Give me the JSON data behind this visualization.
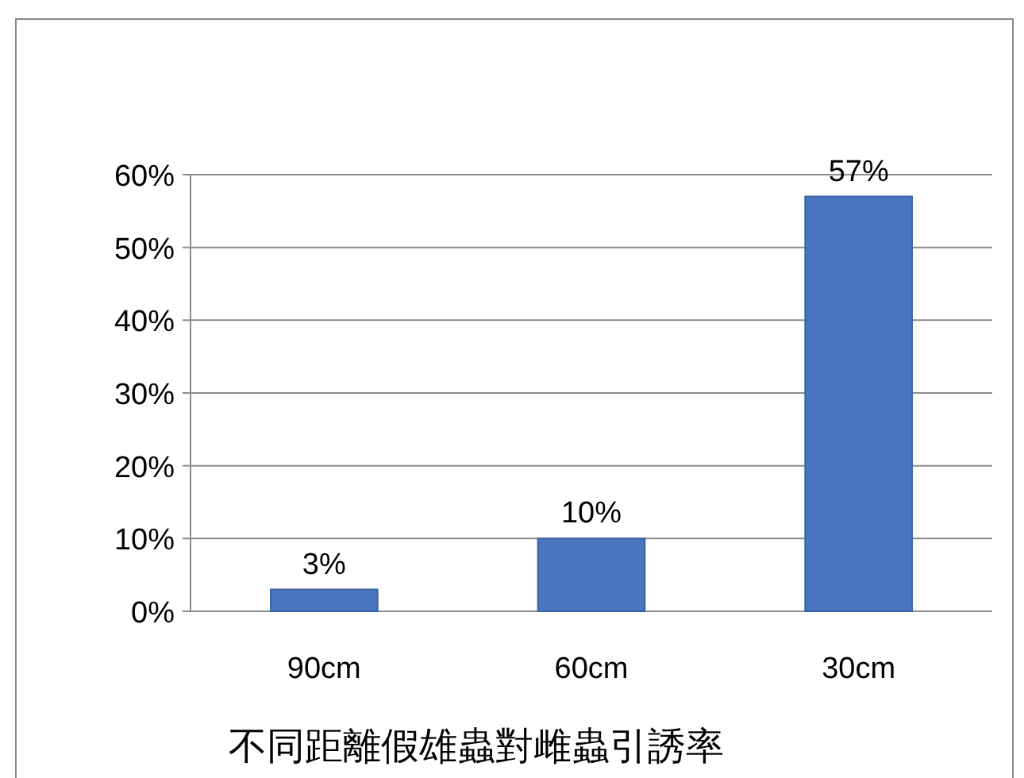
{
  "chart_data": {
    "type": "bar",
    "title": "不同距離假雄蟲對雌蟲引誘率",
    "categories": [
      "90cm",
      "60cm",
      "30cm"
    ],
    "values": [
      3,
      10,
      57
    ],
    "value_labels": [
      "3%",
      "10%",
      "57%"
    ],
    "color": "#4a76bf",
    "ylim": [
      0,
      60
    ],
    "yticks": [
      {
        "value": 0,
        "label": "0%"
      },
      {
        "value": 10,
        "label": "10%"
      },
      {
        "value": 20,
        "label": "20%"
      },
      {
        "value": 30,
        "label": "30%"
      },
      {
        "value": 40,
        "label": "40%"
      },
      {
        "value": 50,
        "label": "50%"
      },
      {
        "value": 60,
        "label": "60%"
      }
    ],
    "grid": "y"
  }
}
